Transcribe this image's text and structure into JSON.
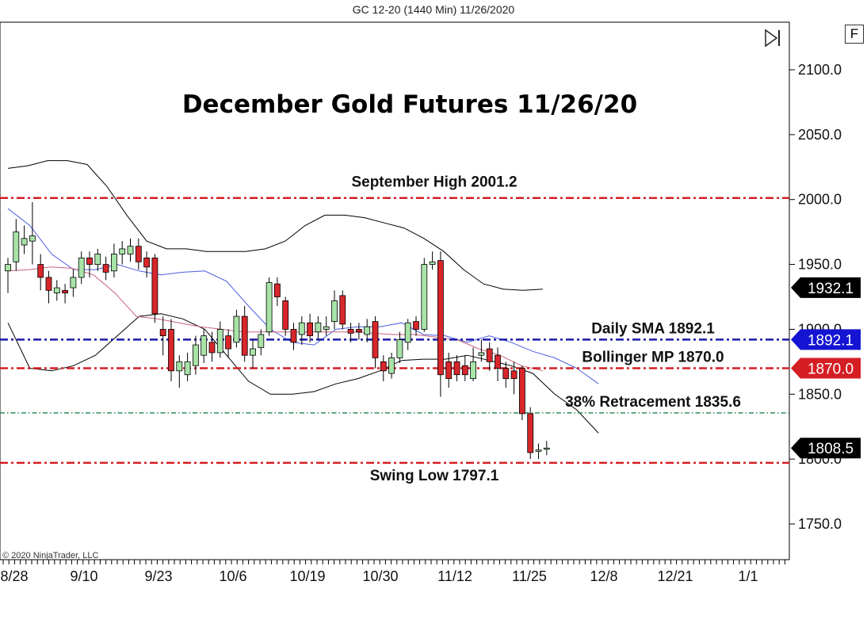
{
  "header": {
    "caption": "GC 12-20 (1440 Min)  11/26/2020"
  },
  "toolbar": {
    "f_label": "F"
  },
  "footer": {
    "copyright": "© 2020 NinjaTrader, LLC"
  },
  "colors": {
    "up": "#a8e3a8",
    "down": "#d8262b",
    "red_line": "#d41e24",
    "blue_line": "#1a1aa8",
    "green_line": "#2e8b57",
    "price_badge": "#000000",
    "upper_band": "#000000",
    "sma": "#4a5ee0",
    "mid": "#c8647a"
  },
  "chart_data": {
    "type": "candlestick",
    "title": "December Gold Futures 11/26/20",
    "y_ticks": [
      "2100.0",
      "2050.0",
      "2000.0",
      "1950.0",
      "1900.0",
      "1850.0",
      "1800.0",
      "1750.0"
    ],
    "y_tick_values": [
      2100,
      2050,
      2000,
      1950,
      1900,
      1850,
      1800,
      1750
    ],
    "ylim": [
      1720,
      2130
    ],
    "x_ticks": [
      "8/28",
      "9/10",
      "9/23",
      "10/6",
      "10/19",
      "10/30",
      "11/12",
      "11/25",
      "12/8",
      "12/21",
      "1/1"
    ],
    "levels": [
      {
        "label": "September High 2001.2",
        "value": 2001.2,
        "style": "red"
      },
      {
        "label": "Daily SMA 1892.1",
        "value": 1892.1,
        "style": "blue"
      },
      {
        "label": "Bollinger MP 1870.0",
        "value": 1870.0,
        "style": "red"
      },
      {
        "label": "38% Retracement 1835.6",
        "value": 1835.6,
        "style": "green"
      },
      {
        "label": "Swing Low 1797.1",
        "value": 1797.1,
        "style": "red"
      }
    ],
    "price_badges": [
      {
        "text": "1932.1",
        "value": 1932.1,
        "color": "#000000"
      },
      {
        "text": "1892.1",
        "value": 1892.1,
        "color": "#1414d2"
      },
      {
        "text": "1870.0",
        "value": 1870.0,
        "color": "#d41e24"
      },
      {
        "text": "1808.5",
        "value": 1808.5,
        "color": "#000000"
      }
    ],
    "candles": [
      [
        1945,
        1950,
        1928,
        1955
      ],
      [
        1952,
        1975,
        1945,
        1985
      ],
      [
        1965,
        1970,
        1958,
        1980
      ],
      [
        1968,
        1972,
        1950,
        1998
      ],
      [
        1950,
        1940,
        1930,
        1958
      ],
      [
        1940,
        1930,
        1920,
        1945
      ],
      [
        1928,
        1932,
        1922,
        1938
      ],
      [
        1930,
        1928,
        1920,
        1935
      ],
      [
        1932,
        1940,
        1925,
        1946
      ],
      [
        1940,
        1955,
        1935,
        1960
      ],
      [
        1955,
        1950,
        1940,
        1960
      ],
      [
        1950,
        1958,
        1945,
        1962
      ],
      [
        1950,
        1944,
        1938,
        1956
      ],
      [
        1945,
        1958,
        1940,
        1966
      ],
      [
        1958,
        1962,
        1950,
        1968
      ],
      [
        1958,
        1964,
        1952,
        1970
      ],
      [
        1964,
        1952,
        1946,
        1970
      ],
      [
        1955,
        1948,
        1940,
        1960
      ],
      [
        1955,
        1912,
        1905,
        1958
      ],
      [
        1900,
        1895,
        1880,
        1910
      ],
      [
        1900,
        1868,
        1860,
        1908
      ],
      [
        1868,
        1875,
        1855,
        1880
      ],
      [
        1865,
        1875,
        1860,
        1882
      ],
      [
        1872,
        1888,
        1865,
        1895
      ],
      [
        1880,
        1895,
        1874,
        1900
      ],
      [
        1890,
        1882,
        1875,
        1898
      ],
      [
        1882,
        1900,
        1878,
        1906
      ],
      [
        1895,
        1885,
        1878,
        1900
      ],
      [
        1890,
        1910,
        1886,
        1915
      ],
      [
        1910,
        1880,
        1875,
        1918
      ],
      [
        1880,
        1885,
        1870,
        1892
      ],
      [
        1886,
        1896,
        1880,
        1900
      ],
      [
        1898,
        1936,
        1895,
        1940
      ],
      [
        1935,
        1925,
        1918,
        1940
      ],
      [
        1922,
        1900,
        1895,
        1925
      ],
      [
        1900,
        1890,
        1884,
        1905
      ],
      [
        1896,
        1905,
        1888,
        1910
      ],
      [
        1905,
        1895,
        1890,
        1912
      ],
      [
        1898,
        1905,
        1892,
        1910
      ],
      [
        1900,
        1902,
        1895,
        1910
      ],
      [
        1906,
        1922,
        1900,
        1930
      ],
      [
        1926,
        1904,
        1900,
        1930
      ],
      [
        1900,
        1897,
        1890,
        1905
      ],
      [
        1900,
        1898,
        1892,
        1905
      ],
      [
        1896,
        1902,
        1890,
        1908
      ],
      [
        1906,
        1878,
        1870,
        1910
      ],
      [
        1875,
        1868,
        1860,
        1880
      ],
      [
        1866,
        1878,
        1862,
        1882
      ],
      [
        1878,
        1892,
        1874,
        1898
      ],
      [
        1890,
        1905,
        1884,
        1908
      ],
      [
        1906,
        1900,
        1895,
        1910
      ],
      [
        1900,
        1950,
        1898,
        1955
      ],
      [
        1950,
        1952,
        1946,
        1960
      ],
      [
        1953,
        1865,
        1848,
        1960
      ],
      [
        1875,
        1862,
        1855,
        1882
      ],
      [
        1875,
        1865,
        1860,
        1880
      ],
      [
        1872,
        1865,
        1860,
        1880
      ],
      [
        1862,
        1875,
        1860,
        1886
      ],
      [
        1880,
        1882,
        1875,
        1892
      ],
      [
        1885,
        1875,
        1868,
        1890
      ],
      [
        1880,
        1870,
        1860,
        1886
      ],
      [
        1870,
        1862,
        1855,
        1875
      ],
      [
        1868,
        1862,
        1850,
        1875
      ],
      [
        1870,
        1835,
        1830,
        1872
      ],
      [
        1835,
        1805,
        1800,
        1840
      ],
      [
        1806,
        1807,
        1800,
        1812
      ],
      [
        1808,
        1808.5,
        1803,
        1814
      ]
    ],
    "upper_band": [
      2024,
      2026,
      2030,
      2030,
      2027,
      2010,
      1988,
      1968,
      1962,
      1962,
      1960,
      1960,
      1960,
      1962,
      1968,
      1980,
      1988,
      1988,
      1986,
      1982,
      1978,
      1970,
      1960,
      1946,
      1935,
      1931,
      1930,
      1931
    ],
    "lower_band": [
      1905,
      1870,
      1868,
      1872,
      1880,
      1895,
      1910,
      1912,
      1908,
      1900,
      1880,
      1860,
      1850,
      1850,
      1852,
      1858,
      1862,
      1868,
      1876,
      1877,
      1877,
      1880,
      1876,
      1872,
      1866,
      1850,
      1838,
      1820
    ],
    "sma_line": [
      1993,
      1980,
      1958,
      1946,
      1946,
      1950,
      1945,
      1942,
      1944,
      1945,
      1937,
      1918,
      1900,
      1890,
      1888,
      1900,
      1902,
      1902,
      1905,
      1896,
      1895,
      1890,
      1895,
      1890,
      1883,
      1878,
      1870,
      1858
    ],
    "mid_line": [
      1945,
      1946,
      1948,
      1947,
      1942,
      1928,
      1910,
      1908,
      1905,
      1902,
      1900,
      1898,
      1898,
      1898,
      1898,
      1898,
      1898,
      1897,
      1896,
      1896,
      1894,
      1892,
      1885,
      1880,
      1872,
      1868
    ]
  }
}
